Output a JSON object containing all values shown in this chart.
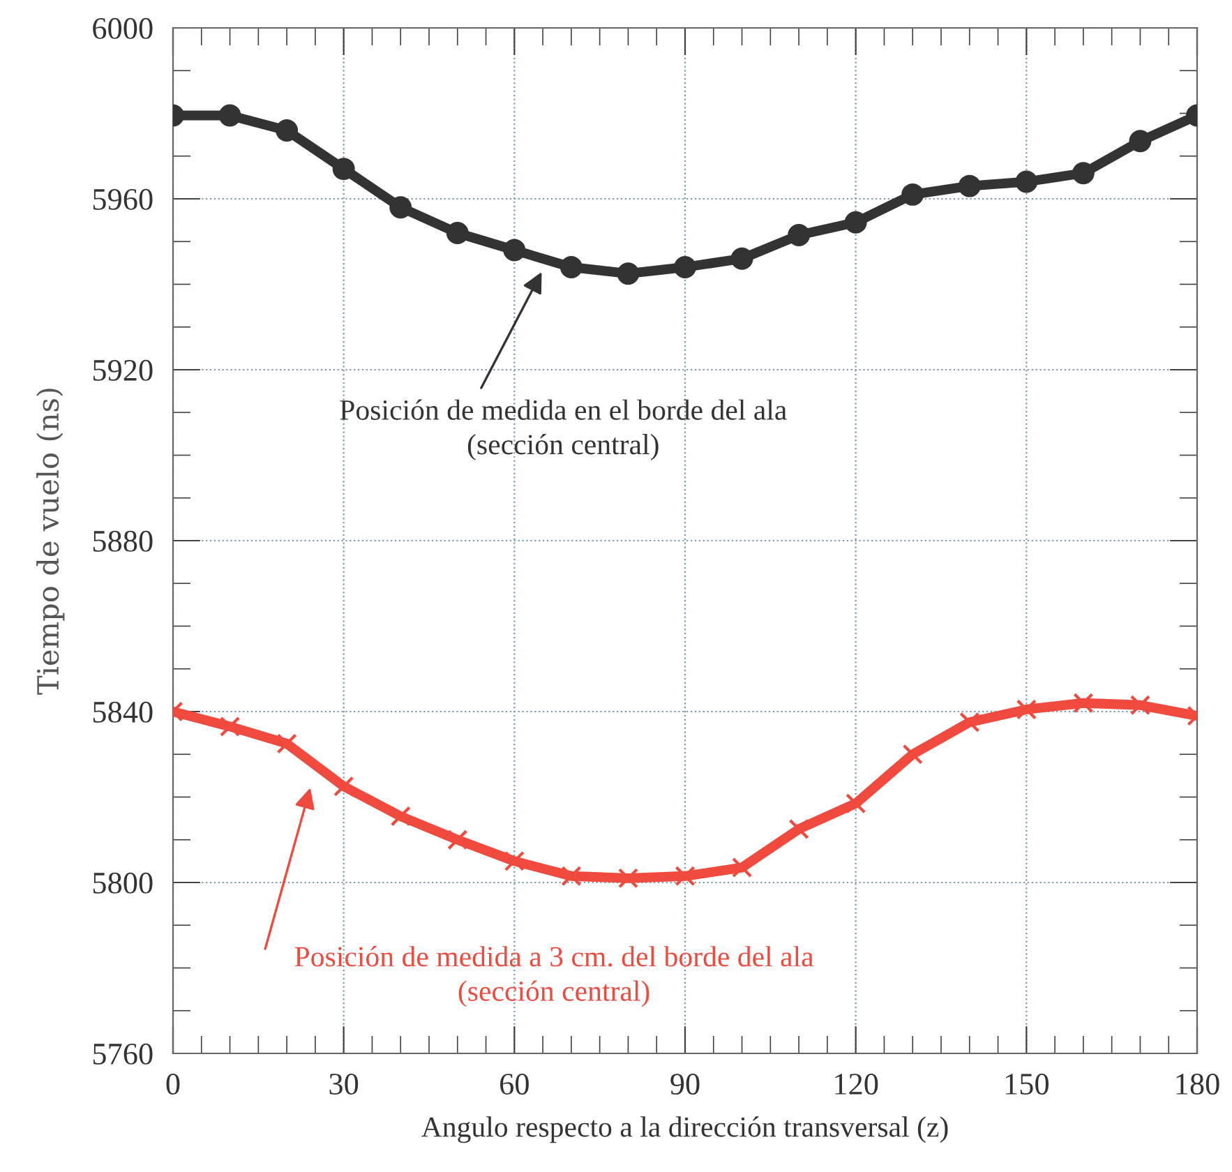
{
  "chart_data": {
    "type": "line",
    "xlabel": "Angulo respecto a la dirección transversal (z)",
    "ylabel": "Tiempo de vuelo (ns)",
    "x": [
      0,
      10,
      20,
      30,
      40,
      50,
      60,
      70,
      80,
      90,
      100,
      110,
      120,
      130,
      140,
      150,
      160,
      170,
      180
    ],
    "series": [
      {
        "color": "#333333",
        "marker": "circle",
        "values": [
          5979.5,
          5979.5,
          5976,
          5967,
          5958,
          5952,
          5948,
          5944,
          5942.5,
          5944,
          5946,
          5951.5,
          5954.5,
          5961,
          5963,
          5964,
          5966,
          5973.5,
          5979.5
        ]
      },
      {
        "color": "#f04a3e",
        "marker": "cross",
        "values": [
          5840,
          5836.5,
          5832.5,
          5822.5,
          5815.5,
          5810,
          5805,
          5801.5,
          5801,
          5801.5,
          5803.5,
          5812.5,
          5818.5,
          5830,
          5837.5,
          5840.5,
          5842,
          5841.5,
          5839
        ]
      }
    ],
    "xlim": [
      0,
      180
    ],
    "xticks": [
      0,
      30,
      60,
      90,
      120,
      150,
      180
    ],
    "ylim": [
      5760,
      6000
    ],
    "yticks": [
      5760,
      5800,
      5840,
      5880,
      5920,
      5960,
      6000
    ],
    "grid": true,
    "annotations": [
      "Posición de medida en el borde del ala\n(sección central)",
      "Posición de medida a 3 cm. del borde del ala\n(sección central)"
    ]
  }
}
